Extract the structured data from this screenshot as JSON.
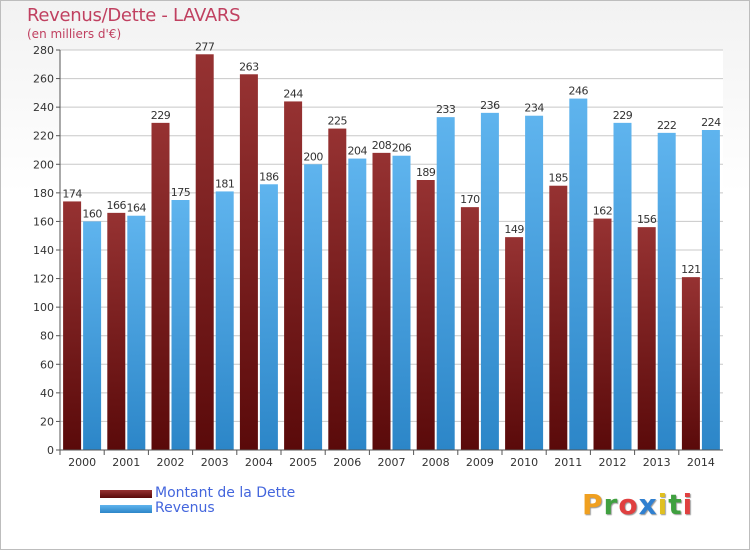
{
  "chart_data": {
    "type": "bar",
    "title": "Revenus/Dette - LAVARS",
    "subtitle": "(en milliers d'€)",
    "categories": [
      "2000",
      "2001",
      "2002",
      "2003",
      "2004",
      "2005",
      "2006",
      "2007",
      "2008",
      "2009",
      "2010",
      "2011",
      "2012",
      "2013",
      "2014"
    ],
    "series": [
      {
        "name": "Montant de la Dette",
        "color": "#7b1818",
        "values": [
          174,
          166,
          229,
          277,
          263,
          244,
          225,
          208,
          189,
          170,
          149,
          185,
          162,
          156,
          121
        ]
      },
      {
        "name": "Revenus",
        "color": "#3d9fe0",
        "values": [
          160,
          164,
          175,
          181,
          186,
          200,
          204,
          206,
          233,
          236,
          234,
          246,
          229,
          222,
          224
        ]
      }
    ],
    "ylim": [
      0,
      280
    ],
    "yticks": [
      0,
      20,
      40,
      60,
      80,
      100,
      120,
      140,
      160,
      180,
      200,
      220,
      240,
      260,
      280
    ],
    "grid": true,
    "legend_position": "bottom-left"
  },
  "logo": {
    "letters": [
      {
        "ch": "P",
        "color": "#f0a020"
      },
      {
        "ch": "r",
        "color": "#40a040"
      },
      {
        "ch": "o",
        "color": "#e04040"
      },
      {
        "ch": "x",
        "color": "#3080d0"
      },
      {
        "ch": "i",
        "color": "#e0c020"
      },
      {
        "ch": "t",
        "color": "#40a040"
      },
      {
        "ch": "i",
        "color": "#e04040"
      }
    ]
  }
}
